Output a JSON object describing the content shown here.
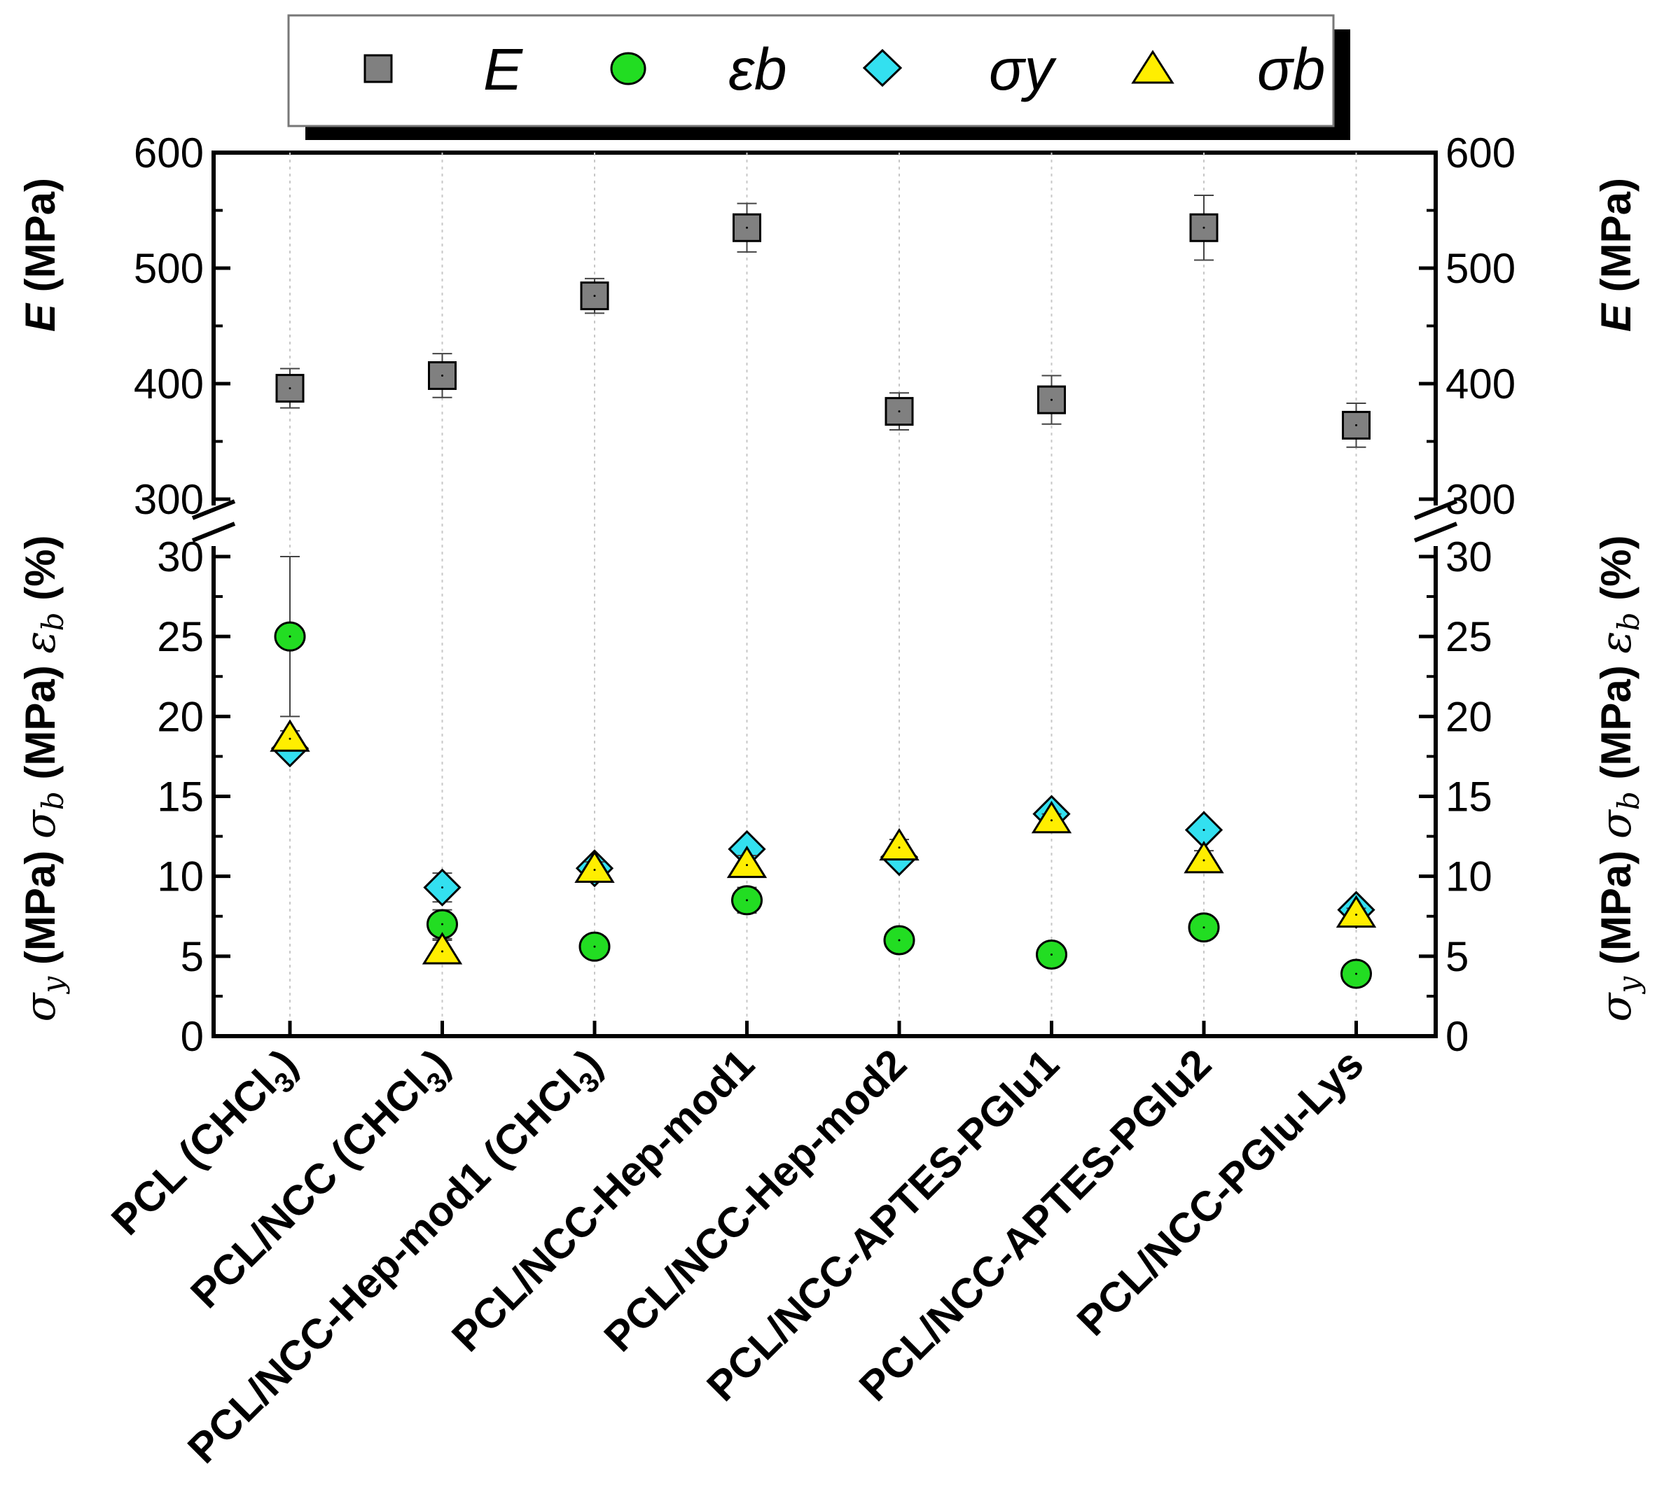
{
  "chart_data": {
    "type": "scatter",
    "title": "",
    "xlabel": "",
    "categories": [
      "PCL (CHCl3)",
      "PCL/NCC (CHCl3)",
      "PCL/NCC-Hep-mod1 (CHCl3)",
      "PCL/NCC-Hep-mod1",
      "PCL/NCC-Hep-mod2",
      "PCL/NCC-APTES-PGlu1",
      "PCL/NCC-APTES-PGlu2",
      "PCL/NCC-PGlu-Lys"
    ],
    "axes": {
      "upper": {
        "ylim": [
          300,
          600
        ],
        "ticks": [
          "300",
          "400",
          "500",
          "600"
        ],
        "ylabel_left": "E (MPa)",
        "ylabel_right": "E (MPa)"
      },
      "lower": {
        "ylim": [
          0,
          30
        ],
        "ticks": [
          "0",
          "5",
          "10",
          "15",
          "20",
          "25",
          "30"
        ],
        "ylabel_left": "σy (MPa) σb (MPa) εb (%)",
        "ylabel_right": "σy (MPa) σb (MPa) εb (%)"
      },
      "axis_break": true,
      "grid": "vertical-dotted"
    },
    "legend": {
      "placement": "top",
      "entries": [
        {
          "symbol": "square",
          "label": "E"
        },
        {
          "symbol": "circle",
          "label": "εb"
        },
        {
          "symbol": "diamond",
          "label": "σy"
        },
        {
          "symbol": "triangle",
          "label": "σb"
        }
      ]
    },
    "series": [
      {
        "name": "E",
        "axis": "upper",
        "marker": "square",
        "color": "#808080",
        "values": [
          396,
          407,
          476,
          535,
          376,
          386,
          535,
          364
        ],
        "errors": [
          17,
          19,
          15,
          21,
          16,
          21,
          28,
          19
        ]
      },
      {
        "name": "εb",
        "axis": "lower",
        "marker": "circle",
        "color": "#22dd22",
        "values": [
          25.0,
          7.0,
          5.6,
          8.5,
          6.0,
          5.1,
          6.8,
          3.9
        ],
        "errors": [
          5.0,
          0.9,
          0.4,
          0.8,
          0.5,
          0.5,
          0.3,
          0.4
        ]
      },
      {
        "name": "σy",
        "axis": "lower",
        "marker": "diamond",
        "color": "#33e0f0",
        "values": [
          18.0,
          9.3,
          10.5,
          11.7,
          11.2,
          13.9,
          12.9,
          7.9
        ],
        "errors": [
          0.4,
          0.9,
          0.3,
          0.4,
          0.4,
          0.3,
          0.3,
          0.3
        ]
      },
      {
        "name": "σb",
        "axis": "lower",
        "marker": "triangle",
        "color": "#ffee00",
        "values": [
          18.6,
          5.3,
          10.4,
          10.7,
          11.8,
          13.5,
          11.0,
          7.6
        ],
        "errors": [
          0.5,
          0.7,
          0.5,
          0.6,
          0.5,
          0.4,
          0.6,
          0.4
        ]
      }
    ]
  }
}
